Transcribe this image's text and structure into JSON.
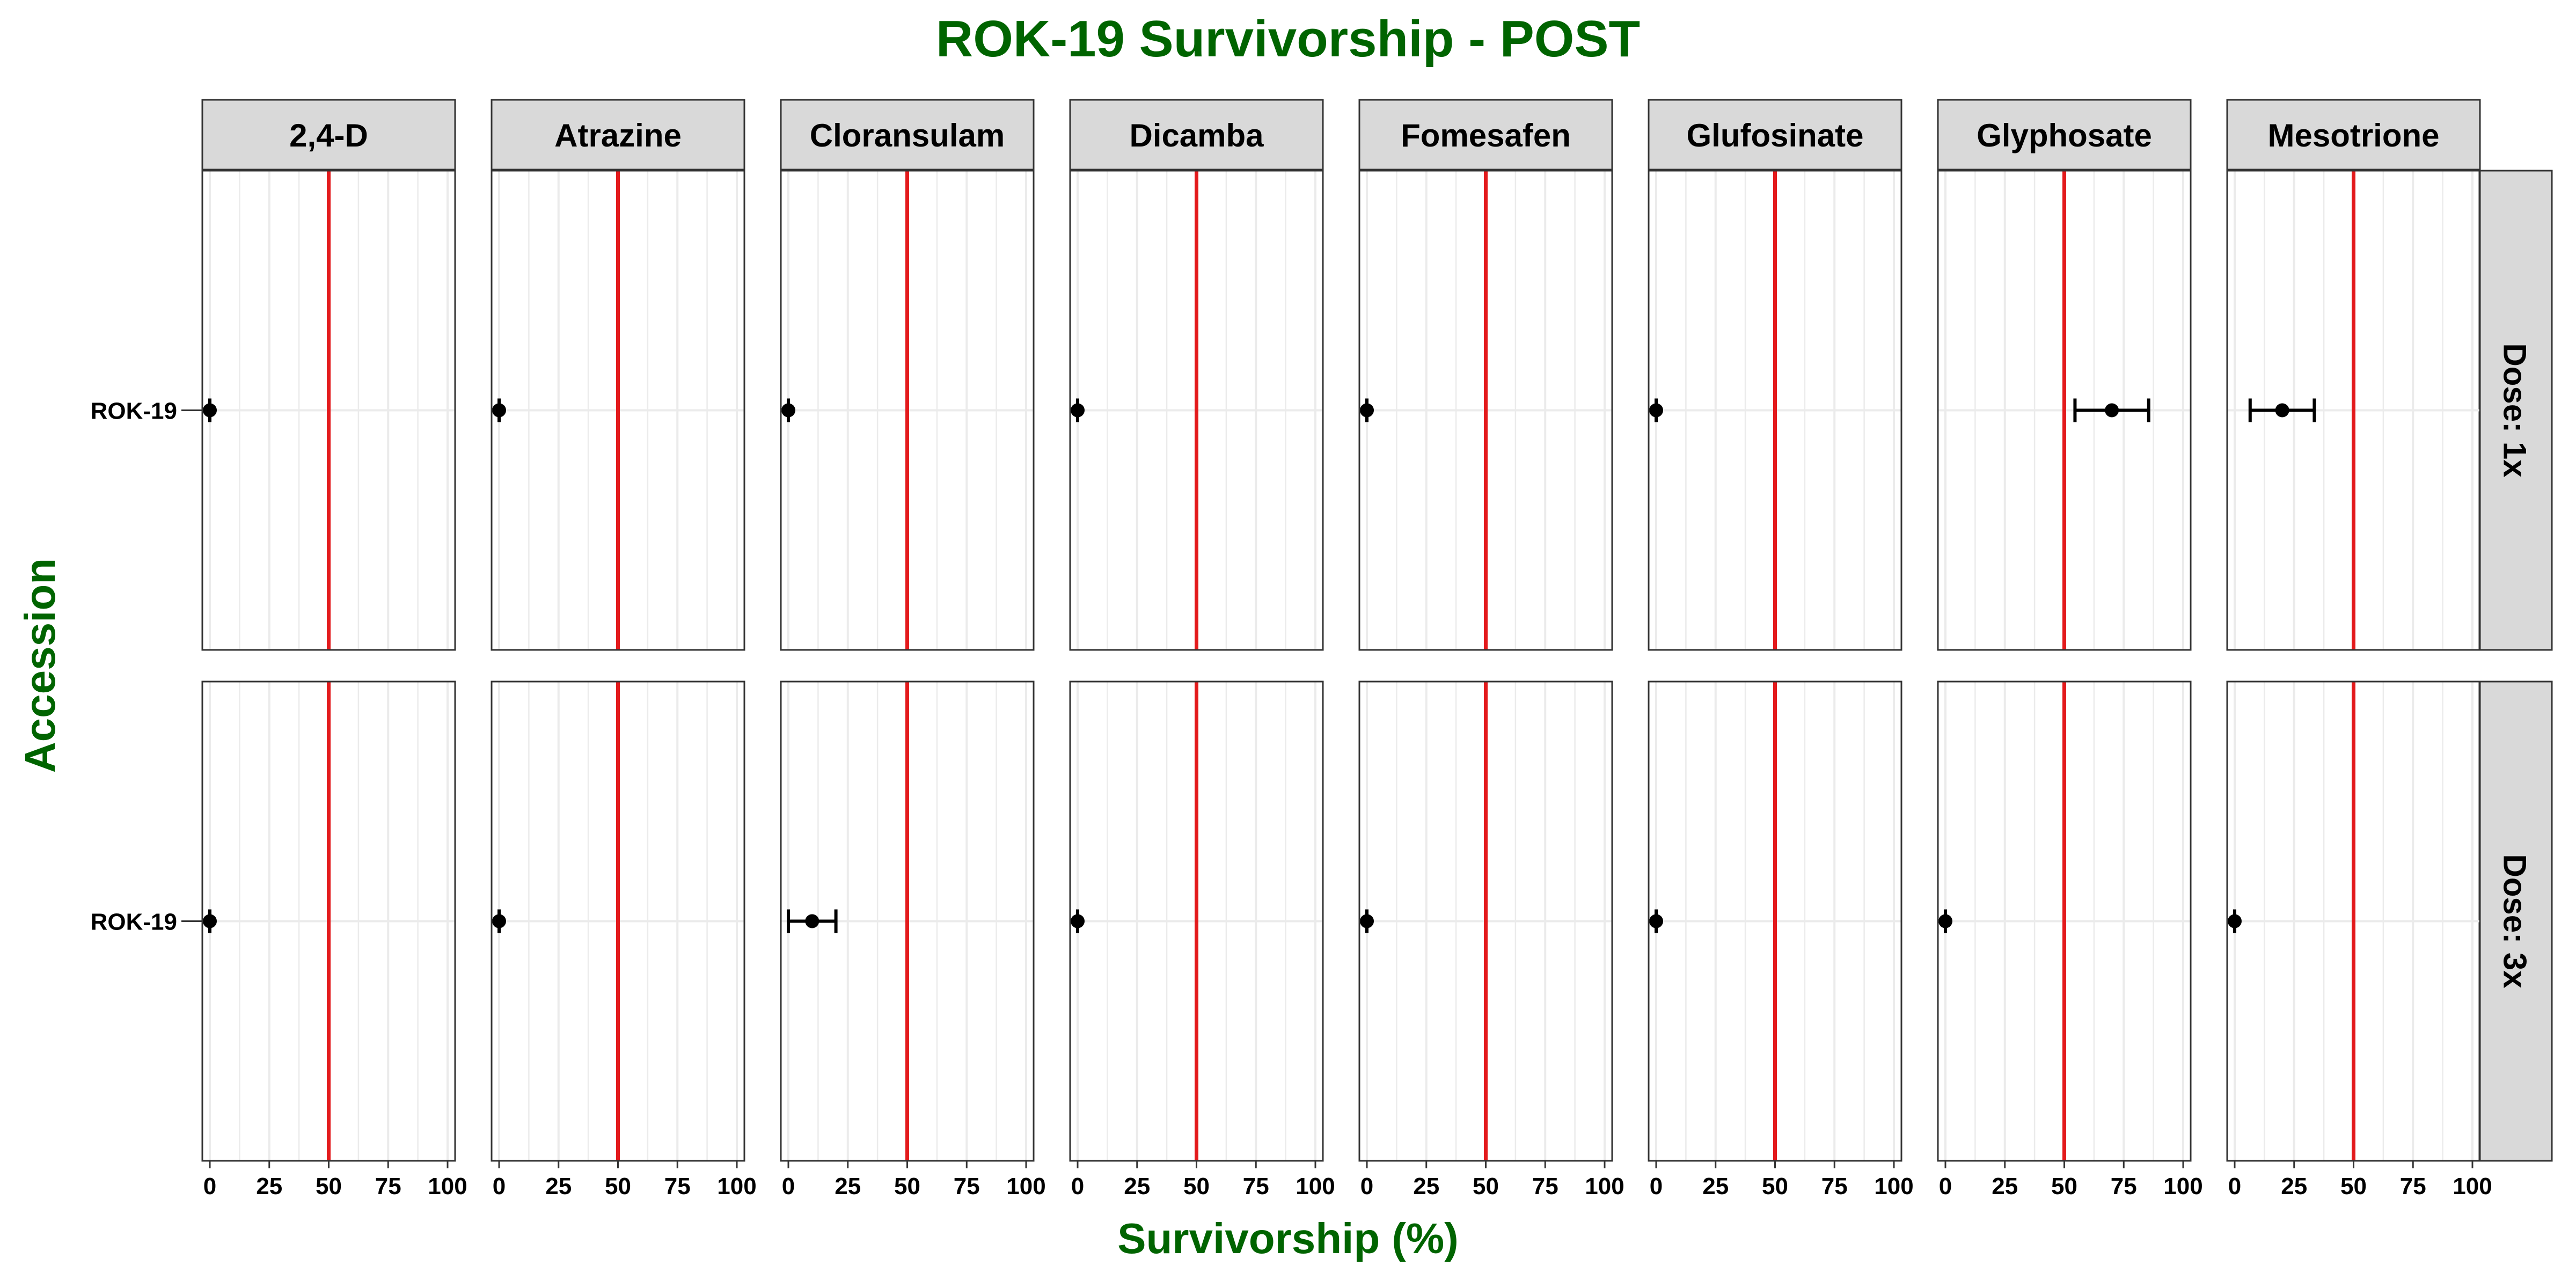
{
  "chart_data": {
    "type": "scatter",
    "title": "ROK-19 Survivorship - POST",
    "xlabel": "Survivorship (%)",
    "ylabel": "Accession",
    "xlim": [
      0,
      100
    ],
    "x_ticks": [
      0,
      25,
      50,
      75,
      100
    ],
    "reference_line_x": 50,
    "facet_columns": [
      "2,4-D",
      "Atrazine",
      "Cloransulam",
      "Dicamba",
      "Fomesafen",
      "Glufosinate",
      "Glyphosate",
      "Mesotrione"
    ],
    "facet_rows": [
      {
        "label": "Dose: 1x",
        "accession": "ROK-19",
        "points": [
          {
            "herbicide": "2,4-D",
            "value": 0,
            "low": 0,
            "high": 0
          },
          {
            "herbicide": "Atrazine",
            "value": 0,
            "low": 0,
            "high": 0
          },
          {
            "herbicide": "Cloransulam",
            "value": 0,
            "low": 0,
            "high": 0
          },
          {
            "herbicide": "Dicamba",
            "value": 0,
            "low": 0,
            "high": 0
          },
          {
            "herbicide": "Fomesafen",
            "value": 0,
            "low": 0,
            "high": 0
          },
          {
            "herbicide": "Glufosinate",
            "value": 0,
            "low": 0,
            "high": 0
          },
          {
            "herbicide": "Glyphosate",
            "value": 70,
            "low": 54.5,
            "high": 85.5
          },
          {
            "herbicide": "Mesotrione",
            "value": 20,
            "low": 6.5,
            "high": 33.5
          }
        ]
      },
      {
        "label": "Dose: 3x",
        "accession": "ROK-19",
        "points": [
          {
            "herbicide": "2,4-D",
            "value": 0,
            "low": 0,
            "high": 0
          },
          {
            "herbicide": "Atrazine",
            "value": 0,
            "low": 0,
            "high": 0
          },
          {
            "herbicide": "Cloransulam",
            "value": 10,
            "low": 0,
            "high": 20
          },
          {
            "herbicide": "Dicamba",
            "value": 0,
            "low": 0,
            "high": 0
          },
          {
            "herbicide": "Fomesafen",
            "value": 0,
            "low": 0,
            "high": 0
          },
          {
            "herbicide": "Glufosinate",
            "value": 0,
            "low": 0,
            "high": 0
          },
          {
            "herbicide": "Glyphosate",
            "value": 0,
            "low": 0,
            "high": 0
          },
          {
            "herbicide": "Mesotrione",
            "value": 0,
            "low": 0,
            "high": 0
          }
        ]
      }
    ],
    "grid": true,
    "colors": {
      "title": "#006400",
      "reference_line": "#e31a1c",
      "strip_fill": "#d9d9d9",
      "grid": "#ebebeb",
      "point": "#000000"
    }
  }
}
